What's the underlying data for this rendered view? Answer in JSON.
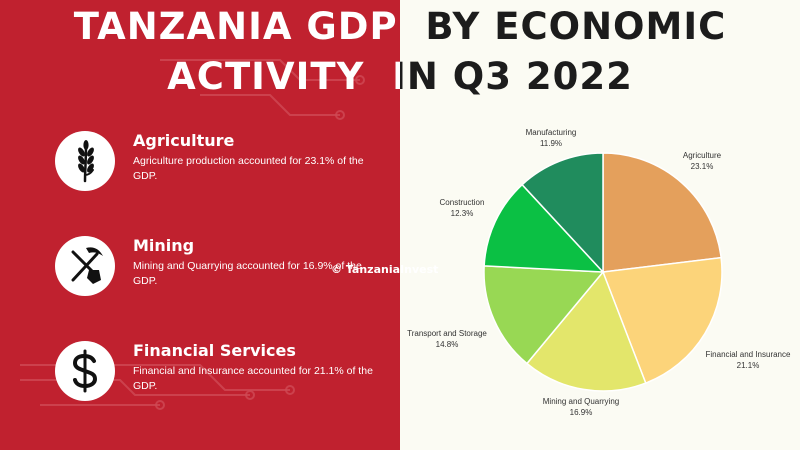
{
  "title": {
    "line1": "TANZANIA GDP  BY ECONOMIC",
    "line2": "ACTIVITY  IN Q3 2022"
  },
  "highlights": [
    {
      "icon": "wheat-icon",
      "title": "Agriculture",
      "description": "Agriculture production accounted for 23.1% of the GDP."
    },
    {
      "icon": "shovel-pickaxe-icon",
      "title": "Mining",
      "description": "Mining and Quarrying accounted for 16.9% of the GDP."
    },
    {
      "icon": "dollar-icon",
      "title": "Financial Services",
      "description": "Financial and Insurance accounted for 21.1% of the GDP."
    }
  ],
  "watermark": "© TanzaniaInvest",
  "colors": {
    "left_background": "#c0212f",
    "right_background": "#fbfbf3",
    "title_left": "#ffffff",
    "title_right": "#1c1c1c"
  },
  "chart_data": {
    "type": "pie",
    "unit": "%",
    "start": "12 o'clock",
    "direction": "clockwise",
    "slices": [
      {
        "label": "Agriculture",
        "value": 23.1,
        "value_label": "23.1%",
        "color": "#e4a05c"
      },
      {
        "label": "Financial and Insurance",
        "value": 21.1,
        "value_label": "21.1%",
        "color": "#fcd47a"
      },
      {
        "label": "Mining and Quarrying",
        "value": 16.9,
        "value_label": "16.9%",
        "color": "#e3e66b"
      },
      {
        "label": "Transport and Storage",
        "value": 14.8,
        "value_label": "14.8%",
        "color": "#98d854"
      },
      {
        "label": "Construction",
        "value": 12.3,
        "value_label": "12.3%",
        "color": "#0bc044"
      },
      {
        "label": "Manufacturing",
        "value": 11.9,
        "value_label": "11.9%",
        "color": "#208c5d"
      }
    ]
  }
}
